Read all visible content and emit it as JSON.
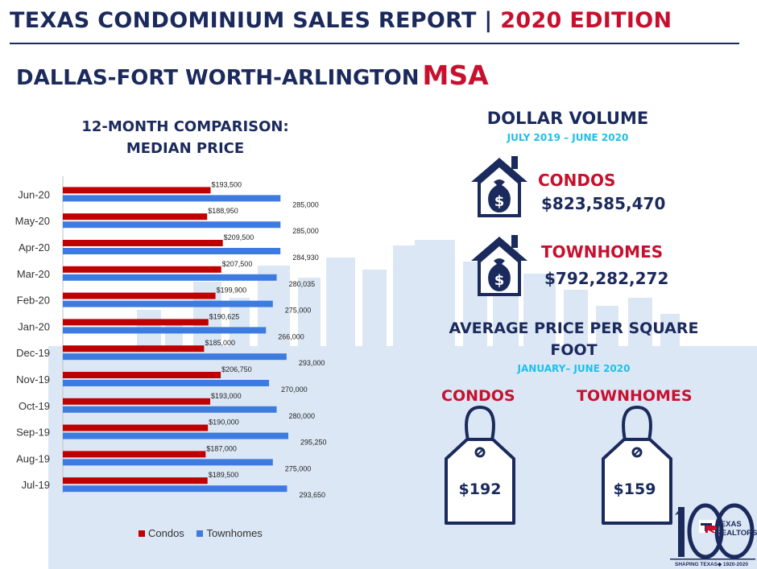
{
  "header": {
    "title": "TEXAS CONDOMINIUM SALES REPORT",
    "separator": " | ",
    "edition": "2020 EDITION"
  },
  "region": {
    "name": "DALLAS-FORT WORTH-ARLINGTON",
    "suffix": "MSA"
  },
  "chart_data": {
    "type": "bar",
    "orientation": "horizontal",
    "title": "12-MONTH COMPARISON: MEDIAN PRICE",
    "title_lines": [
      "12-MONTH COMPARISON:",
      "MEDIAN PRICE"
    ],
    "categories": [
      "Jun-20",
      "May-20",
      "Apr-20",
      "Mar-20",
      "Feb-20",
      "Jan-20",
      "Dec-19",
      "Nov-19",
      "Oct-19",
      "Sep-19",
      "Aug-19",
      "Jul-19"
    ],
    "series": [
      {
        "name": "Condos",
        "color": "#c00000",
        "values": [
          193500,
          188950,
          209500,
          207500,
          199900,
          190625,
          185000,
          206750,
          193000,
          190000,
          187000,
          189500
        ],
        "labels": [
          "$193,500",
          "$188,950",
          "$209,500",
          "$207,500",
          "$199,900",
          "$190,625",
          "$185,000",
          "$206,750",
          "$193,000",
          "$190,000",
          "$187,000",
          "$189,500"
        ]
      },
      {
        "name": "Townhomes",
        "color": "#3d7be0",
        "values": [
          285000,
          285000,
          284930,
          280035,
          275000,
          266000,
          293000,
          270000,
          280000,
          295250,
          275000,
          293650
        ],
        "labels": [
          "285,000",
          "285,000",
          "284,930",
          "280,035",
          "275,000",
          "266,000",
          "293,000",
          "270,000",
          "280,000",
          "295,250",
          "275,000",
          "293,650"
        ]
      }
    ],
    "legend_position": "bottom",
    "grid": false
  },
  "dollar_volume": {
    "title": "DOLLAR VOLUME",
    "period": "JULY 2019 – JUNE 2020",
    "condos": {
      "label": "CONDOS",
      "value": "$823,585,470"
    },
    "townhomes": {
      "label": "TOWNHOMES",
      "value": "$792,282,272"
    }
  },
  "price_per_sqft": {
    "title_lines": [
      "AVERAGE PRICE PER SQUARE",
      "FOOT"
    ],
    "period": "JANUARY– JUNE 2020",
    "condos": {
      "label": "CONDOS",
      "price": "$192"
    },
    "townhomes": {
      "label": "TOWNHOMES",
      "price": "$159"
    }
  },
  "logo": {
    "brand_line1": "TEXAS",
    "brand_line2": "REALTORS",
    "tagline": "SHAPING TEXAS◆ 1920-2020"
  },
  "colors": {
    "navy": "#1b2a5c",
    "red": "#c8102e",
    "cyan": "#1ec0ea",
    "skyline": "#dde8f6"
  }
}
